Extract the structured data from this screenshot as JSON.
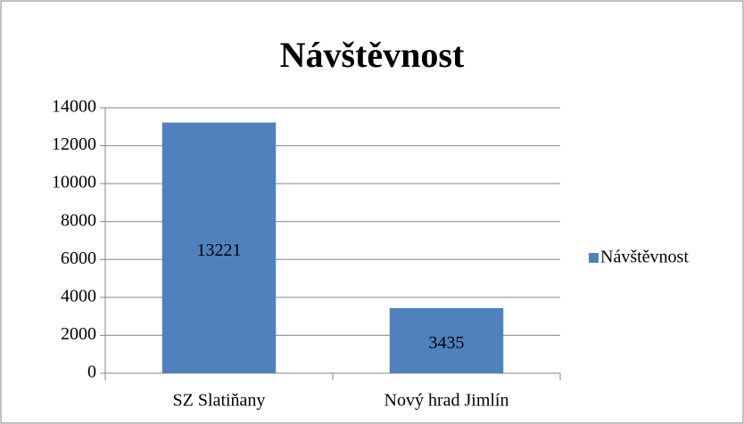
{
  "chart_data": {
    "type": "bar",
    "title": "Návštěvnost",
    "categories": [
      "SZ Slatiňany",
      "Nový hrad Jimlín"
    ],
    "series": [
      {
        "name": "Návštěvnost",
        "color": "#4f81bd",
        "values": [
          13221,
          3435
        ]
      }
    ],
    "ylim": [
      0,
      14000
    ],
    "yticks": [
      0,
      2000,
      4000,
      6000,
      8000,
      10000,
      12000,
      14000
    ],
    "grid": true,
    "legend": "right"
  }
}
